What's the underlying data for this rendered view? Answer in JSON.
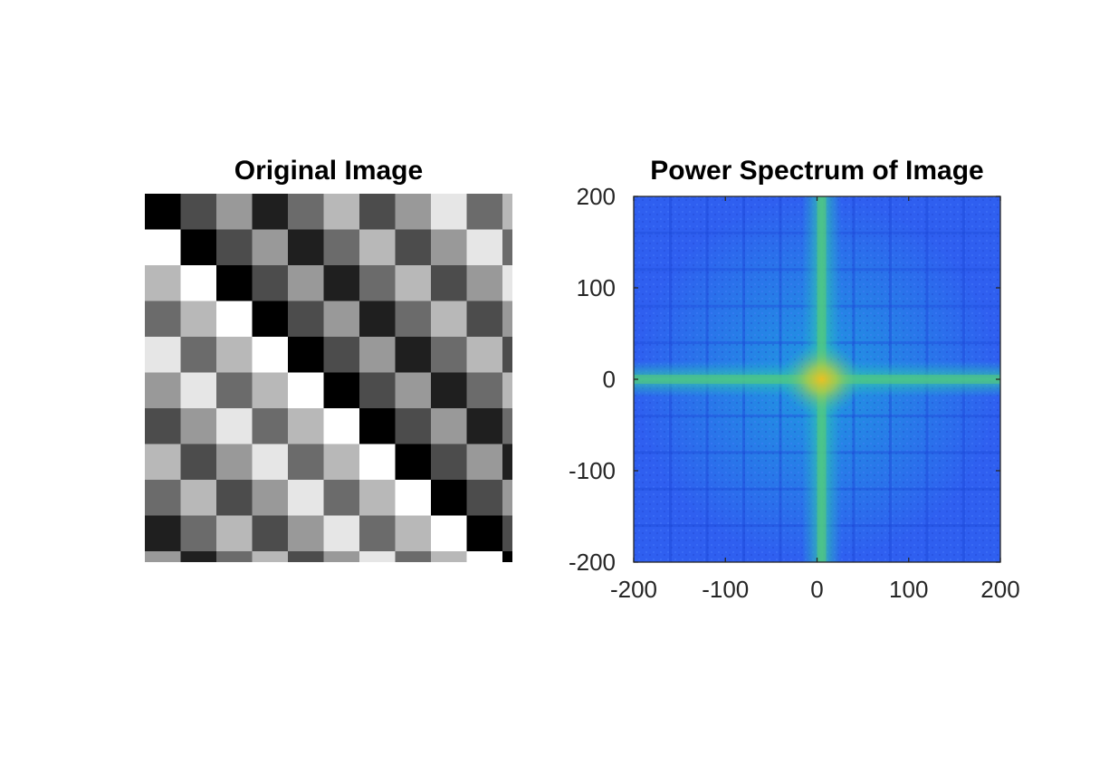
{
  "chart_data": [
    {
      "type": "heatmap",
      "title": "Original Image",
      "colormap": "gray",
      "grid": false,
      "axes_visible": false,
      "rows": [
        [
          0,
          76,
          153,
          31,
          107,
          184,
          76,
          153,
          230,
          107,
          184
        ],
        [
          255,
          0,
          76,
          153,
          31,
          107,
          184,
          76,
          153,
          230,
          107
        ],
        [
          184,
          255,
          0,
          76,
          153,
          31,
          107,
          184,
          76,
          153,
          230
        ],
        [
          107,
          184,
          255,
          0,
          76,
          153,
          31,
          107,
          184,
          76,
          153
        ],
        [
          230,
          107,
          184,
          255,
          0,
          76,
          153,
          31,
          107,
          184,
          76
        ],
        [
          153,
          230,
          107,
          184,
          255,
          0,
          76,
          153,
          31,
          107,
          184
        ],
        [
          76,
          153,
          230,
          107,
          184,
          255,
          0,
          76,
          153,
          31,
          107
        ],
        [
          184,
          76,
          153,
          230,
          107,
          184,
          255,
          0,
          76,
          153,
          31
        ],
        [
          107,
          184,
          76,
          153,
          230,
          107,
          184,
          255,
          0,
          76,
          153
        ],
        [
          31,
          107,
          184,
          76,
          153,
          230,
          107,
          184,
          255,
          0,
          76
        ],
        [
          153,
          31,
          107,
          184,
          76,
          153,
          230,
          107,
          184,
          255,
          0
        ]
      ]
    },
    {
      "type": "heatmap",
      "title": "Power Spectrum of Image",
      "colormap": "parula",
      "grid": false,
      "xlim": [
        -200,
        200
      ],
      "ylim": [
        -200,
        200
      ],
      "x_ticks": [
        "-200",
        "-100",
        "0",
        "100",
        "200"
      ],
      "y_ticks": [
        "200",
        "100",
        "0",
        "-100",
        "-200"
      ],
      "peak": [
        5,
        0
      ],
      "colors": {
        "background": "#2f5ff0",
        "mid": "#1aa8e0",
        "cross": "#22c0a8",
        "peak": "#e8c020"
      }
    }
  ]
}
